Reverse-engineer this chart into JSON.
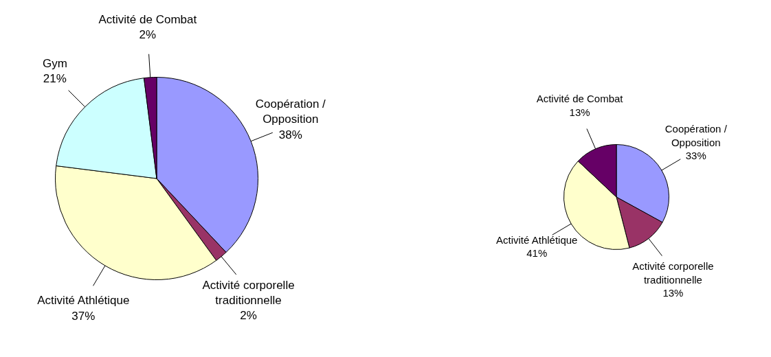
{
  "chart_data": [
    {
      "type": "pie",
      "categories": [
        "Coopération / Opposition",
        "Activité corporelle traditionnelle",
        "Activité Athlétique",
        "Gym",
        "Activité de Combat"
      ],
      "values": [
        38,
        2,
        37,
        21,
        2
      ],
      "value_labels": [
        "38%",
        "2%",
        "37%",
        "21%",
        "2%"
      ],
      "colors": [
        "#9999ff",
        "#993366",
        "#ffffcc",
        "#ccffff",
        "#660066"
      ]
    },
    {
      "type": "pie",
      "categories": [
        "Coopération / Opposition",
        "Activité corporelle traditionnelle",
        "Activité Athlétique",
        "Activité de Combat"
      ],
      "values": [
        33,
        13,
        41,
        13
      ],
      "value_labels": [
        "33%",
        "13%",
        "41%",
        "13%"
      ],
      "colors": [
        "#9999ff",
        "#993366",
        "#ffffcc",
        "#660066"
      ]
    }
  ]
}
